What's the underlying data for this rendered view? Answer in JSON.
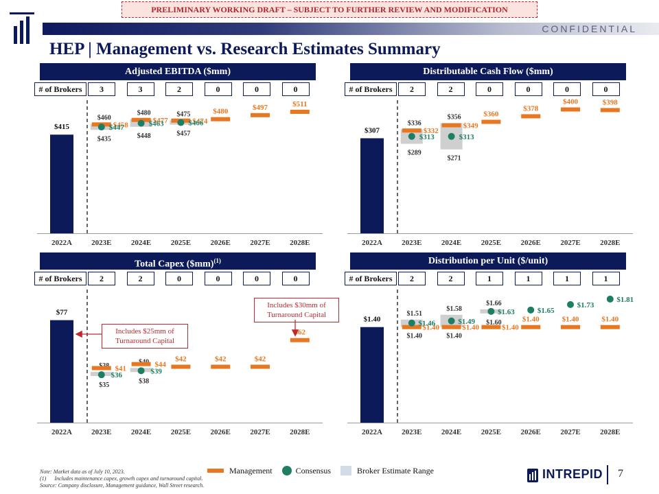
{
  "draft_banner": "PRELIMINARY WORKING DRAFT – SUBJECT TO FURTHER REVIEW AND MODIFICATION",
  "confidential": "CONFIDENTIAL",
  "title": "HEP | Management vs. Research Estimates Summary",
  "brokers_label": "# of Brokers",
  "legend": {
    "management": "Management",
    "consensus": "Consensus",
    "range": "Broker Estimate Range"
  },
  "notes": [
    "Note: Market data as of July 10, 2023.",
    "(1)      Includes maintenance capex, growth capex and turnaround capital.",
    "Source: Company disclosure, Management guidance, Wall Street research."
  ],
  "brand": "INTREPID",
  "page_number": "7",
  "colors": {
    "navy": "#0c1a5a",
    "orange": "#e87722",
    "green": "#1d7e63",
    "range": "#cfcfcf",
    "red": "#c0282d"
  },
  "callouts": {
    "capex_2022": "Includes $25mm of Turnaround Capital",
    "capex_2028": "Includes $30mm of Turnaround Capital"
  },
  "chart_data": [
    {
      "id": "ebitda",
      "type": "bar",
      "title": "Adjusted EBITDA ($mm)",
      "title_sup": "",
      "categories": [
        "2022A",
        "2023E",
        "2024E",
        "2025E",
        "2026E",
        "2027E",
        "2028E"
      ],
      "brokers": [
        "3",
        "3",
        "2",
        "0",
        "0",
        "0"
      ],
      "ymax": 560,
      "actual": {
        "value": 415,
        "label": "$415"
      },
      "management": [
        458,
        477,
        474,
        480,
        497,
        511
      ],
      "management_labels": [
        "$458",
        "$477",
        "$474",
        "$480",
        "$497",
        "$511"
      ],
      "consensus": [
        447,
        463,
        466,
        null,
        null,
        null
      ],
      "consensus_labels": [
        "$447",
        "$463",
        "$466",
        "",
        "",
        ""
      ],
      "range_high": [
        460,
        480,
        475,
        null,
        null,
        null
      ],
      "range_low": [
        435,
        448,
        457,
        null,
        null,
        null
      ],
      "range_high_labels": [
        "$460",
        "$480",
        "$475",
        "",
        "",
        ""
      ],
      "range_low_labels": [
        "$435",
        "$448",
        "$457",
        "",
        "",
        ""
      ]
    },
    {
      "id": "dcf",
      "type": "bar",
      "title": "Distributable Cash Flow ($mm)",
      "title_sup": "",
      "categories": [
        "2022A",
        "2023E",
        "2024E",
        "2025E",
        "2026E",
        "2027E",
        "2028E"
      ],
      "brokers": [
        "2",
        "2",
        "0",
        "0",
        "0",
        "0"
      ],
      "ymax": 430,
      "actual": {
        "value": 307,
        "label": "$307"
      },
      "management": [
        332,
        349,
        360,
        378,
        400,
        398
      ],
      "management_labels": [
        "$332",
        "$349",
        "$360",
        "$378",
        "$400",
        "$398"
      ],
      "consensus": [
        313,
        313,
        null,
        null,
        null,
        null
      ],
      "consensus_labels": [
        "$313",
        "$313",
        "",
        "",
        "",
        ""
      ],
      "range_high": [
        336,
        356,
        null,
        null,
        null,
        null
      ],
      "range_low": [
        289,
        271,
        null,
        null,
        null,
        null
      ],
      "range_high_labels": [
        "$336",
        "$356",
        "",
        "",
        "",
        ""
      ],
      "range_low_labels": [
        "$289",
        "$271",
        "",
        "",
        "",
        ""
      ]
    },
    {
      "id": "capex",
      "type": "bar",
      "title": "Total Capex ($mm)",
      "title_sup": "(1)",
      "categories": [
        "2022A",
        "2023E",
        "2024E",
        "2025E",
        "2026E",
        "2027E",
        "2028E"
      ],
      "brokers": [
        "2",
        "2",
        "0",
        "0",
        "0",
        "0"
      ],
      "ymax": 100,
      "actual": {
        "value": 77,
        "label": "$77"
      },
      "management": [
        41,
        44,
        42,
        42,
        42,
        62
      ],
      "management_labels": [
        "$41",
        "$44",
        "$42",
        "$42",
        "$42",
        "$62"
      ],
      "consensus": [
        36,
        39,
        null,
        null,
        null,
        null
      ],
      "consensus_labels": [
        "$36",
        "$39",
        "",
        "",
        "",
        ""
      ],
      "range_high": [
        38,
        40,
        null,
        null,
        null,
        null
      ],
      "range_low": [
        35,
        38,
        null,
        null,
        null,
        null
      ],
      "range_high_labels": [
        "$38",
        "$40",
        "",
        "",
        "",
        ""
      ],
      "range_low_labels": [
        "$35",
        "$38",
        "",
        "",
        "",
        ""
      ]
    },
    {
      "id": "dpu",
      "type": "bar",
      "title": "Distribution per Unit ($/unit)",
      "title_sup": "",
      "categories": [
        "2022A",
        "2023E",
        "2024E",
        "2025E",
        "2026E",
        "2027E",
        "2028E"
      ],
      "brokers": [
        "2",
        "2",
        "1",
        "1",
        "1",
        "1"
      ],
      "ymax": 1.95,
      "actual": {
        "value": 1.4,
        "label": "$1.40"
      },
      "management": [
        1.4,
        1.4,
        1.4,
        1.4,
        1.4,
        1.4
      ],
      "management_labels": [
        "$1.40",
        "$1.40",
        "$1.40",
        "$1.40",
        "$1.40",
        "$1.40"
      ],
      "consensus": [
        1.46,
        1.49,
        1.63,
        1.65,
        1.73,
        1.81
      ],
      "consensus_labels": [
        "$1.46",
        "$1.49",
        "$1.63",
        "$1.65",
        "$1.73",
        "$1.81"
      ],
      "range_high": [
        1.51,
        1.58,
        1.66,
        null,
        null,
        null
      ],
      "range_low": [
        1.4,
        1.4,
        1.6,
        null,
        null,
        null
      ],
      "range_high_labels": [
        "$1.51",
        "$1.58",
        "$1.66",
        "",
        "",
        ""
      ],
      "range_low_labels": [
        "$1.40",
        "$1.40",
        "$1.60",
        "",
        "",
        ""
      ]
    }
  ]
}
